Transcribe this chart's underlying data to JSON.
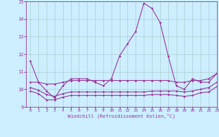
{
  "x": [
    0,
    1,
    2,
    3,
    4,
    5,
    6,
    7,
    8,
    9,
    10,
    11,
    12,
    13,
    14,
    15,
    16,
    17,
    18,
    19,
    20,
    21,
    22,
    23
  ],
  "line1": [
    11.6,
    10.4,
    9.9,
    9.5,
    10.2,
    10.6,
    10.6,
    10.6,
    10.4,
    10.2,
    10.6,
    11.9,
    12.6,
    13.3,
    14.9,
    14.6,
    13.8,
    11.9,
    10.2,
    10.0,
    10.6,
    10.4,
    10.4,
    10.9
  ],
  "line2": [
    10.4,
    10.4,
    10.3,
    10.3,
    10.4,
    10.5,
    10.5,
    10.5,
    10.5,
    10.5,
    10.5,
    10.5,
    10.5,
    10.5,
    10.5,
    10.5,
    10.5,
    10.5,
    10.4,
    10.4,
    10.5,
    10.5,
    10.6,
    10.9
  ],
  "line3": [
    10.1,
    9.95,
    9.7,
    9.6,
    9.75,
    9.85,
    9.85,
    9.85,
    9.85,
    9.85,
    9.85,
    9.85,
    9.85,
    9.85,
    9.85,
    9.9,
    9.9,
    9.9,
    9.9,
    9.85,
    9.9,
    10.0,
    10.1,
    10.4
  ],
  "line4": [
    9.9,
    9.75,
    9.4,
    9.4,
    9.55,
    9.65,
    9.65,
    9.65,
    9.65,
    9.65,
    9.65,
    9.65,
    9.65,
    9.65,
    9.65,
    9.7,
    9.7,
    9.7,
    9.65,
    9.6,
    9.65,
    9.8,
    9.85,
    10.15
  ],
  "ylim": [
    9,
    15
  ],
  "xlim": [
    -0.5,
    23
  ],
  "yticks": [
    9,
    10,
    11,
    12,
    13,
    14,
    15
  ],
  "xticks": [
    0,
    1,
    2,
    3,
    4,
    5,
    6,
    7,
    8,
    9,
    10,
    11,
    12,
    13,
    14,
    15,
    16,
    17,
    18,
    19,
    20,
    21,
    22,
    23
  ],
  "xlabel": "Windchill (Refroidissement éolien,°C)",
  "line_color": "#993399",
  "bg_color": "#cceeff",
  "grid_color": "#aacccc",
  "marker": "D",
  "marker_size": 1.8,
  "linewidth": 0.8
}
